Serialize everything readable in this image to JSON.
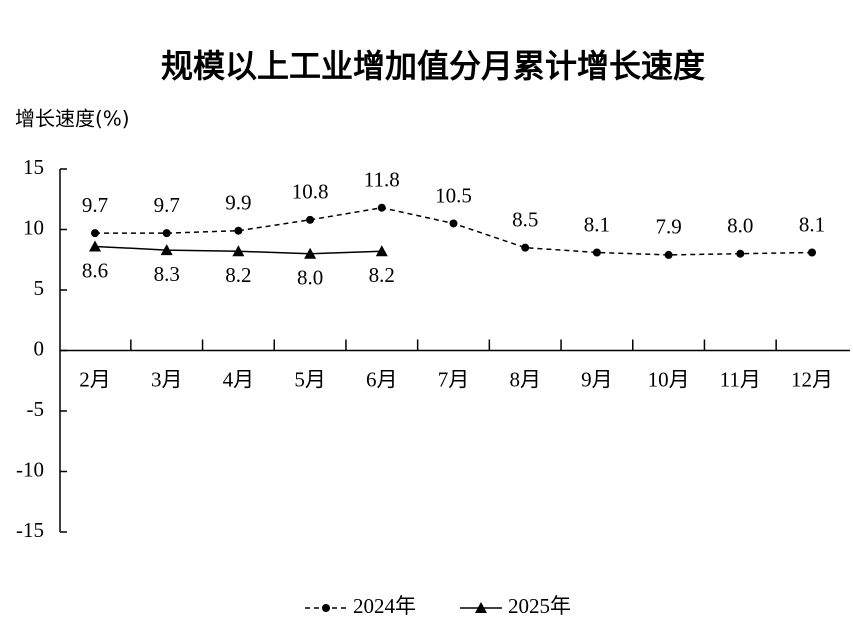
{
  "chart_data": {
    "type": "line",
    "title": "规模以上工业增加值分月累计增长速度",
    "y_label": "增长速度(%)",
    "categories": [
      "2月",
      "3月",
      "4月",
      "5月",
      "6月",
      "7月",
      "8月",
      "9月",
      "10月",
      "11月",
      "12月"
    ],
    "series": [
      {
        "name": "2024年",
        "color": "#000000",
        "style": "dashed",
        "marker": "circle",
        "label_position": "above",
        "values": [
          9.7,
          9.7,
          9.9,
          10.8,
          11.8,
          10.5,
          8.5,
          8.1,
          7.9,
          8.0,
          8.1
        ],
        "value_labels": [
          "9.7",
          "9.7",
          "9.9",
          "10.8",
          "11.8",
          "10.5",
          "8.5",
          "8.1",
          "7.9",
          "8.0",
          "8.1"
        ]
      },
      {
        "name": "2025年",
        "color": "#000000",
        "style": "solid",
        "marker": "triangle",
        "label_position": "below",
        "values": [
          8.6,
          8.3,
          8.2,
          8.0,
          8.2,
          null,
          null,
          null,
          null,
          null,
          null
        ],
        "value_labels": [
          "8.6",
          "8.3",
          "8.2",
          "8.0",
          "8.2",
          null,
          null,
          null,
          null,
          null,
          null
        ]
      }
    ],
    "ylim": [
      -15,
      15
    ],
    "yticks": [
      -15,
      -10,
      -5,
      0,
      5,
      10,
      15
    ],
    "grid": false,
    "legend": "bottom"
  }
}
